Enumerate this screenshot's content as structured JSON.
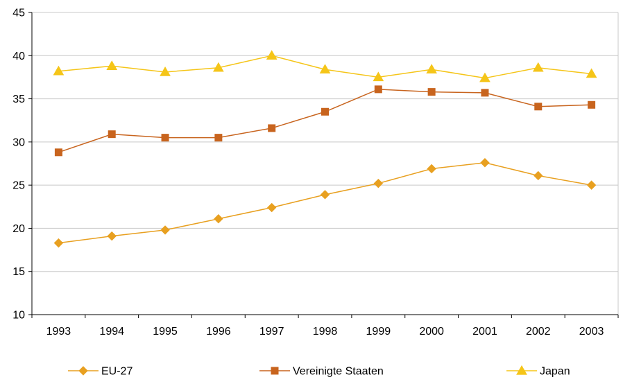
{
  "chart_data": {
    "type": "line",
    "title": "",
    "xlabel": "",
    "ylabel": "",
    "categories": [
      "1993",
      "1994",
      "1995",
      "1996",
      "1997",
      "1998",
      "1999",
      "2000",
      "2001",
      "2002",
      "2003"
    ],
    "ylim": [
      10,
      45
    ],
    "y_ticks": [
      10,
      15,
      20,
      25,
      30,
      35,
      40,
      45
    ],
    "grid": "horizontal",
    "legend_position": "bottom",
    "series": [
      {
        "name": "EU-27",
        "marker": "diamond",
        "color": "#E8A020",
        "values": [
          18.3,
          19.1,
          19.8,
          21.1,
          22.4,
          23.9,
          25.2,
          26.9,
          27.6,
          26.1,
          25.0
        ]
      },
      {
        "name": "Vereinigte Staaten",
        "marker": "square",
        "color": "#C8641E",
        "values": [
          28.8,
          30.9,
          30.5,
          30.5,
          31.6,
          33.5,
          36.1,
          35.8,
          35.7,
          34.1,
          34.3
        ]
      },
      {
        "name": "Japan",
        "marker": "triangle",
        "color": "#F5C518",
        "values": [
          38.2,
          38.8,
          38.1,
          38.6,
          40.0,
          38.4,
          37.5,
          38.4,
          37.4,
          38.6,
          37.9
        ]
      }
    ]
  }
}
